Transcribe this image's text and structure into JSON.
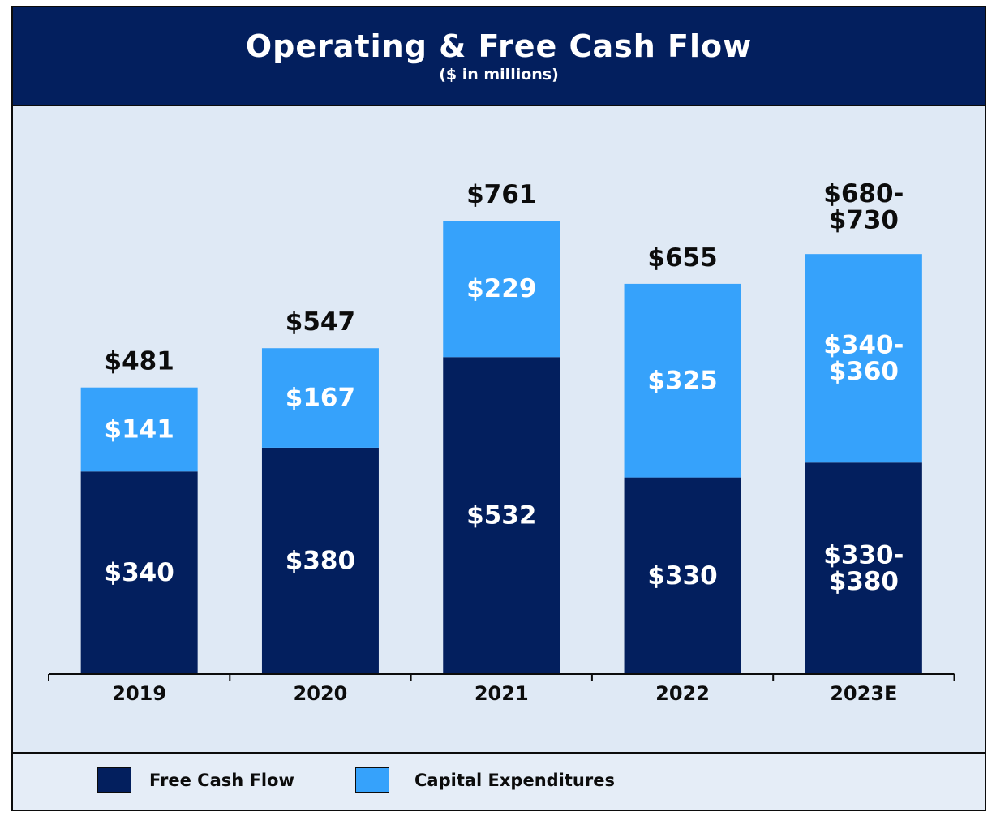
{
  "title": "Operating & Free Cash Flow",
  "subtitle": "($ in millions)",
  "colors": {
    "fcf": "#031f5e",
    "capex": "#36a2fb",
    "text_on_bar": "#ffffff",
    "total_text": "#0c0c0c"
  },
  "legend": [
    {
      "name": "Free Cash Flow",
      "color": "#031f5e"
    },
    {
      "name": "Capital Expenditures",
      "color": "#36a2fb"
    }
  ],
  "chart_data": {
    "type": "bar",
    "stacked": true,
    "categories": [
      "2019",
      "2020",
      "2021",
      "2022",
      "2023E"
    ],
    "series": [
      {
        "name": "Free Cash Flow",
        "values": [
          340,
          380,
          532,
          330,
          355
        ],
        "labels": [
          "$340",
          "$380",
          "$532",
          "$330",
          "$330-\n$380"
        ]
      },
      {
        "name": "Capital Expenditures",
        "values": [
          141,
          167,
          229,
          325,
          350
        ],
        "labels": [
          "$141",
          "$167",
          "$229",
          "$325",
          "$340-\n$360"
        ]
      }
    ],
    "totals": [
      481,
      547,
      761,
      655,
      705
    ],
    "total_labels": [
      "$481",
      "$547",
      "$761",
      "$655",
      "$680-\n$730"
    ],
    "title": "Operating & Free Cash Flow",
    "subtitle": "($ in millions)",
    "xlabel": "",
    "ylabel": "",
    "grid": false,
    "legend_position": "bottom"
  }
}
